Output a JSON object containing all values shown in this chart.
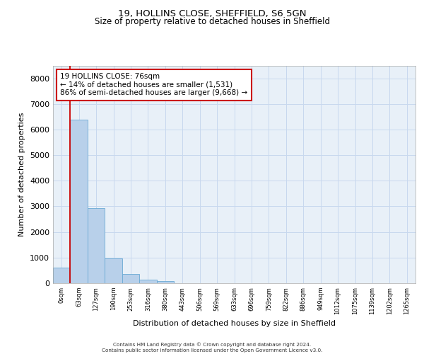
{
  "title_line1": "19, HOLLINS CLOSE, SHEFFIELD, S6 5GN",
  "title_line2": "Size of property relative to detached houses in Sheffield",
  "xlabel": "Distribution of detached houses by size in Sheffield",
  "ylabel": "Number of detached properties",
  "bar_labels": [
    "0sqm",
    "63sqm",
    "127sqm",
    "190sqm",
    "253sqm",
    "316sqm",
    "380sqm",
    "443sqm",
    "506sqm",
    "569sqm",
    "633sqm",
    "696sqm",
    "759sqm",
    "822sqm",
    "886sqm",
    "949sqm",
    "1012sqm",
    "1075sqm",
    "1139sqm",
    "1202sqm",
    "1265sqm"
  ],
  "bar_values": [
    600,
    6380,
    2920,
    960,
    360,
    150,
    80,
    0,
    0,
    0,
    0,
    0,
    0,
    0,
    0,
    0,
    0,
    0,
    0,
    0,
    0
  ],
  "bar_color": "#b8d0ea",
  "bar_edge_color": "#6aaad4",
  "grid_color": "#c8d8ee",
  "background_color": "#e8f0f8",
  "annotation_box_color": "#ffffff",
  "annotation_box_edge": "#cc0000",
  "annotation_line_color": "#cc0000",
  "annotation_text_line1": "19 HOLLINS CLOSE: 76sqm",
  "annotation_text_line2": "← 14% of detached houses are smaller (1,531)",
  "annotation_text_line3": "86% of semi-detached houses are larger (9,668) →",
  "red_line_x": 1.0,
  "ylim": [
    0,
    8500
  ],
  "yticks": [
    0,
    1000,
    2000,
    3000,
    4000,
    5000,
    6000,
    7000,
    8000
  ],
  "footer_line1": "Contains HM Land Registry data © Crown copyright and database right 2024.",
  "footer_line2": "Contains public sector information licensed under the Open Government Licence v3.0."
}
